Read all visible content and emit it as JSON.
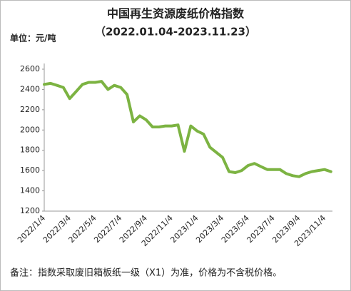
{
  "chart_data": {
    "type": "line",
    "title": "中国再生资源废纸价格指数",
    "subtitle": "（2022.01.04-2023.11.23）",
    "unit_label": "单位：元/吨",
    "note": "备注：指数采取废旧箱板纸一级（X1）为准，价格为不含税价格。",
    "categories": [
      "2022/1/4",
      null,
      null,
      null,
      "2022/3/4",
      null,
      null,
      null,
      "2022/5/4",
      null,
      null,
      null,
      "2022/7/4",
      null,
      null,
      null,
      "2022/9/4",
      null,
      null,
      null,
      "2022/11/4",
      null,
      null,
      null,
      "2023/1/4",
      null,
      null,
      null,
      "2023/3/4",
      null,
      null,
      null,
      "2023/5/4",
      null,
      null,
      null,
      "2023/7/4",
      null,
      null,
      null,
      "2023/9/4",
      null,
      null,
      null,
      "2023/11/4",
      null
    ],
    "series": [
      {
        "color": "#7cb342",
        "values": [
          2450,
          2460,
          2440,
          2420,
          2310,
          2380,
          2450,
          2470,
          2470,
          2480,
          2400,
          2440,
          2420,
          2350,
          2080,
          2140,
          2100,
          2030,
          2030,
          2040,
          2040,
          2050,
          1790,
          2040,
          1990,
          1960,
          1830,
          1780,
          1730,
          1590,
          1580,
          1600,
          1650,
          1670,
          1640,
          1610,
          1610,
          1610,
          1570,
          1550,
          1540,
          1570,
          1590,
          1600,
          1610,
          1590
        ]
      }
    ],
    "ylim": [
      1200,
      2600
    ],
    "yticks": [
      1200,
      1400,
      1600,
      1800,
      2000,
      2200,
      2400,
      2600
    ]
  }
}
